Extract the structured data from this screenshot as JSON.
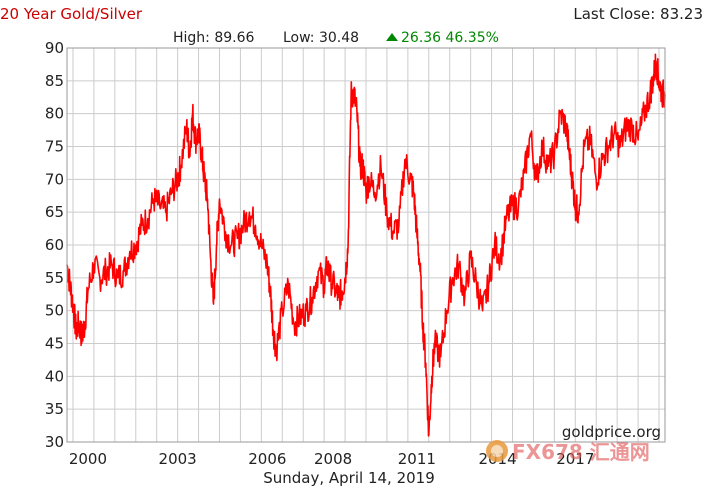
{
  "header": {
    "title": "20 Year Gold/Silver",
    "last_close_label": "Last Close: 83.23",
    "high_label": "High: 89.66",
    "low_label": "Low: 30.48",
    "change_label": "26.36 46.35%",
    "title_color": "#cc0000",
    "change_color": "#008800"
  },
  "watermark": {
    "site": "goldprice.org",
    "overlay": "FX678 汇通网"
  },
  "chart_data": {
    "type": "line",
    "title": "20 Year Gold/Silver",
    "date_label": "Sunday, April 14, 2019",
    "ylim": [
      30,
      90
    ],
    "yticks": [
      30,
      35,
      40,
      45,
      50,
      55,
      60,
      65,
      70,
      75,
      80,
      85,
      90
    ],
    "xlim": [
      1999.3,
      2019.3
    ],
    "xticks": [
      {
        "label": "2000",
        "x": 2000.0
      },
      {
        "label": "2003",
        "x": 2003.0
      },
      {
        "label": "2006",
        "x": 2006.0
      },
      {
        "label": "2008",
        "x": 2008.2
      },
      {
        "label": "2011",
        "x": 2011.0
      },
      {
        "label": "2014",
        "x": 2013.7
      },
      {
        "label": "2017",
        "x": 2016.3
      }
    ],
    "grid": true,
    "line_color": "#ff0000",
    "series": [
      {
        "x": [
          1999.3,
          1999.4,
          1999.5,
          1999.6,
          1999.7,
          1999.8,
          1999.9,
          2000.0,
          2000.2,
          2000.4,
          2000.6,
          2000.8,
          2001.0,
          2001.2,
          2001.4,
          2001.6,
          2001.8,
          2002.0,
          2002.2,
          2002.4,
          2002.6,
          2002.8,
          2003.0,
          2003.1,
          2003.3,
          2003.4,
          2003.5,
          2003.6,
          2003.7,
          2003.8,
          2003.9,
          2004.0,
          2004.1,
          2004.2,
          2004.3,
          2004.4,
          2004.6,
          2004.8,
          2005.0,
          2005.2,
          2005.4,
          2005.6,
          2005.8,
          2006.0,
          2006.1,
          2006.2,
          2006.3,
          2006.5,
          2006.7,
          2006.9,
          2007.1,
          2007.3,
          2007.5,
          2007.7,
          2007.9,
          2008.0,
          2008.1,
          2008.3,
          2008.4,
          2008.5,
          2008.6,
          2008.7,
          2008.8,
          2008.9,
          2009.0,
          2009.1,
          2009.2,
          2009.3,
          2009.4,
          2009.6,
          2009.8,
          2010.0,
          2010.2,
          2010.4,
          2010.6,
          2010.8,
          2010.9,
          2011.0,
          2011.1,
          2011.2,
          2011.3,
          2011.4,
          2011.5,
          2011.6,
          2011.8,
          2012.0,
          2012.2,
          2012.4,
          2012.6,
          2012.8,
          2013.0,
          2013.2,
          2013.4,
          2013.6,
          2013.8,
          2014.0,
          2014.2,
          2014.4,
          2014.6,
          2014.8,
          2015.0,
          2015.2,
          2015.4,
          2015.6,
          2015.8,
          2016.0,
          2016.1,
          2016.2,
          2016.3,
          2016.4,
          2016.6,
          2016.8,
          2017.0,
          2017.2,
          2017.4,
          2017.6,
          2017.8,
          2018.0,
          2018.2,
          2018.4,
          2018.6,
          2018.8,
          2018.9,
          2019.0,
          2019.1,
          2019.2,
          2019.3
        ],
        "y": [
          57,
          54,
          51,
          47,
          48,
          46,
          48,
          53,
          57,
          55,
          56,
          57,
          55,
          56,
          59,
          60,
          63,
          64,
          67,
          66,
          65,
          68,
          70,
          72,
          78,
          74,
          80,
          76,
          77,
          74,
          70,
          67,
          58,
          51,
          60,
          67,
          62,
          60,
          61,
          63,
          65,
          63,
          60,
          57,
          53,
          47,
          44,
          50,
          54,
          48,
          49,
          50,
          52,
          56,
          54,
          57,
          55,
          53,
          52,
          53,
          55,
          60,
          83,
          83,
          80,
          72,
          72,
          68,
          70,
          68,
          72,
          65,
          62,
          63,
          73,
          70,
          68,
          62,
          57,
          48,
          42,
          31,
          40,
          45,
          43,
          50,
          55,
          57,
          52,
          58,
          54,
          50,
          54,
          60,
          58,
          64,
          66,
          66,
          71,
          77,
          70,
          75,
          72,
          74,
          80,
          78,
          74,
          70,
          66,
          65,
          75,
          76,
          70,
          73,
          75,
          77,
          75,
          78,
          78,
          76,
          80,
          83,
          85,
          88,
          85,
          83,
          83
        ]
      }
    ]
  }
}
